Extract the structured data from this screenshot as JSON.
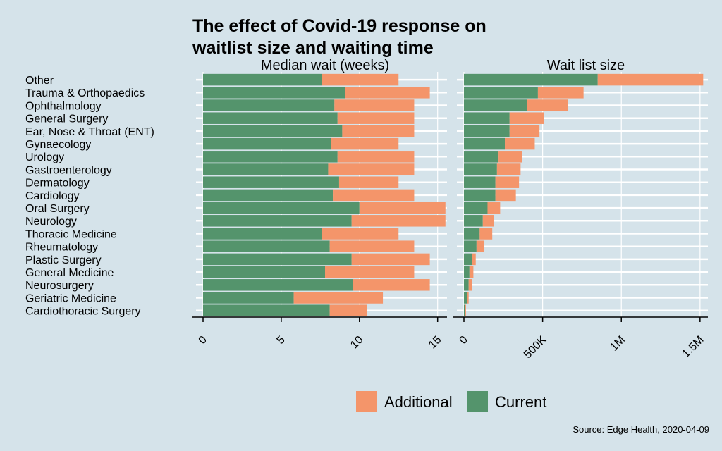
{
  "chart_data": {
    "type": "bar",
    "stacked": true,
    "orientation": "horizontal",
    "title_lines": [
      "The effect of Covid-19 response on",
      "waitlist size and waiting time"
    ],
    "source": "Source: Edge Health, 2020-04-09",
    "categories": [
      "Other",
      "Trauma & Orthopaedics",
      "Ophthalmology",
      "General Surgery",
      "Ear, Nose & Throat (ENT)",
      "Gynaecology",
      "Urology",
      "Gastroenterology",
      "Dermatology",
      "Cardiology",
      "Oral Surgery",
      "Neurology",
      "Thoracic Medicine",
      "Rheumatology",
      "Plastic Surgery",
      "General Medicine",
      "Neurosurgery",
      "Geriatric Medicine",
      "Cardiothoracic Surgery"
    ],
    "legend": [
      {
        "name": "Additional",
        "color": "#f4956a"
      },
      {
        "name": "Current",
        "color": "#54946c"
      }
    ],
    "panels": [
      {
        "facet_label": "Median wait (weeks)",
        "xlim": [
          0,
          15.6
        ],
        "ticks": [
          0,
          5,
          10,
          15
        ],
        "tick_labels": [
          "0",
          "5",
          "10",
          "15"
        ],
        "series": [
          {
            "name": "Current",
            "values": [
              7.6,
              9.1,
              8.4,
              8.6,
              8.9,
              8.2,
              8.6,
              8.0,
              8.7,
              8.3,
              10.0,
              9.5,
              7.6,
              8.1,
              9.5,
              7.8,
              9.6,
              5.8,
              8.1
            ]
          },
          {
            "name": "Additional",
            "values": [
              4.9,
              5.4,
              5.1,
              4.9,
              4.6,
              4.3,
              4.9,
              5.5,
              3.8,
              5.2,
              5.5,
              6.0,
              4.9,
              5.4,
              5.0,
              5.7,
              4.9,
              5.7,
              2.4
            ]
          }
        ]
      },
      {
        "facet_label": "Wait list size",
        "xlim": [
          0,
          1.55
        ],
        "ticks": [
          0,
          0.5,
          1.0,
          1.5
        ],
        "tick_labels": [
          "0",
          "500K",
          "1M",
          "1.5M"
        ],
        "series": [
          {
            "name": "Current",
            "values": [
              0.85,
              0.47,
              0.4,
              0.29,
              0.29,
              0.26,
              0.22,
              0.21,
              0.2,
              0.2,
              0.15,
              0.12,
              0.1,
              0.08,
              0.05,
              0.035,
              0.03,
              0.018,
              0.008
            ]
          },
          {
            "name": "Additional",
            "values": [
              0.67,
              0.29,
              0.26,
              0.22,
              0.19,
              0.19,
              0.15,
              0.15,
              0.15,
              0.13,
              0.08,
              0.07,
              0.08,
              0.05,
              0.025,
              0.025,
              0.02,
              0.012,
              0.005
            ]
          }
        ]
      }
    ]
  }
}
